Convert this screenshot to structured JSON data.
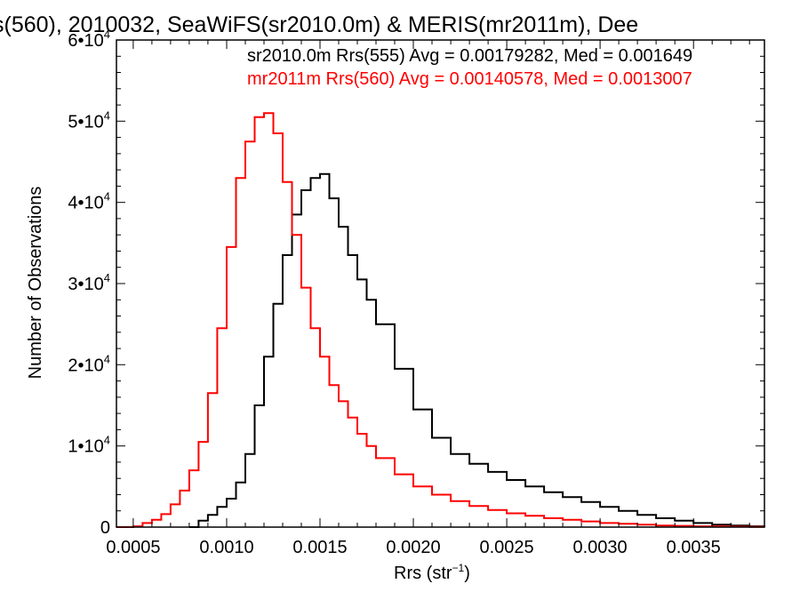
{
  "chart_data": {
    "type": "line",
    "title": "s(560), 2010032, SeaWiFS(sr2010.0m) & MERIS(mr2011m), Dee",
    "xlabel": "Rrs (str",
    "xlabel_sup": "−1",
    "xlabel_end": ")",
    "ylabel": "Number of Observations",
    "xlim": [
      0.00041,
      0.00388
    ],
    "ylim": [
      0,
      60000
    ],
    "x_ticks": [
      {
        "value": 0.0005,
        "label": "0.0005"
      },
      {
        "value": 0.001,
        "label": "0.0010"
      },
      {
        "value": 0.0015,
        "label": "0.0015"
      },
      {
        "value": 0.002,
        "label": "0.0020"
      },
      {
        "value": 0.0025,
        "label": "0.0025"
      },
      {
        "value": 0.003,
        "label": "0.0030"
      },
      {
        "value": 0.0035,
        "label": "0.0035"
      }
    ],
    "y_ticks": [
      {
        "value": 0,
        "base": "0",
        "exp": ""
      },
      {
        "value": 10000,
        "base": "1•10",
        "exp": "4"
      },
      {
        "value": 20000,
        "base": "2•10",
        "exp": "4"
      },
      {
        "value": 30000,
        "base": "3•10",
        "exp": "4"
      },
      {
        "value": 40000,
        "base": "4•10",
        "exp": "4"
      },
      {
        "value": 50000,
        "base": "5•10",
        "exp": "4"
      },
      {
        "value": 60000,
        "base": "6•10",
        "exp": "4"
      }
    ],
    "grid": false,
    "annotations": [
      {
        "text": "sr2010.0m Rrs(555) Avg = 0.00179282, Med = 0.001649",
        "color": "#000000"
      },
      {
        "text": "mr2011m Rrs(560) Avg = 0.00140578, Med = 0.0013007",
        "color": "#ff0000"
      }
    ],
    "series": [
      {
        "color": "#000000",
        "style": "step",
        "x": [
          0.0008,
          0.00085,
          0.0009,
          0.00095,
          0.001,
          0.00105,
          0.0011,
          0.00115,
          0.0012,
          0.00125,
          0.0013,
          0.00135,
          0.0014,
          0.00145,
          0.0015,
          0.00155,
          0.0016,
          0.00165,
          0.0017,
          0.00175,
          0.0018,
          0.0019,
          0.002,
          0.0021,
          0.0022,
          0.0023,
          0.0024,
          0.0025,
          0.0026,
          0.0027,
          0.0028,
          0.0029,
          0.003,
          0.0031,
          0.0032,
          0.0033,
          0.0034,
          0.0035,
          0.0036,
          0.0037,
          0.0038,
          0.00388
        ],
        "values": [
          0,
          800,
          1500,
          2500,
          3500,
          5500,
          9000,
          15000,
          21000,
          27500,
          33500,
          38500,
          41500,
          43000,
          43500,
          40500,
          37000,
          33500,
          30500,
          28000,
          25000,
          19500,
          14500,
          11000,
          9000,
          7800,
          6800,
          5800,
          5000,
          4300,
          3700,
          3100,
          2500,
          2000,
          1500,
          1100,
          800,
          500,
          300,
          200,
          100,
          50
        ]
      },
      {
        "color": "#ff0000",
        "style": "step",
        "x": [
          0.00041,
          0.0005,
          0.00055,
          0.0006,
          0.00065,
          0.0007,
          0.00075,
          0.0008,
          0.00085,
          0.0009,
          0.00095,
          0.001,
          0.00105,
          0.0011,
          0.00115,
          0.0012,
          0.00125,
          0.0013,
          0.00135,
          0.0014,
          0.00145,
          0.0015,
          0.00155,
          0.0016,
          0.00165,
          0.0017,
          0.00175,
          0.0018,
          0.0019,
          0.002,
          0.0021,
          0.0022,
          0.0023,
          0.0024,
          0.0025,
          0.0026,
          0.0027,
          0.0028,
          0.0029,
          0.003,
          0.0031,
          0.0032,
          0.0033,
          0.0034,
          0.0035,
          0.0036,
          0.0037,
          0.0038,
          0.00388
        ],
        "values": [
          0,
          100,
          500,
          900,
          1600,
          2800,
          4500,
          7000,
          10500,
          16500,
          24500,
          34500,
          43000,
          47500,
          50500,
          51000,
          48500,
          42500,
          36000,
          29500,
          24500,
          21000,
          17500,
          15500,
          13500,
          11500,
          10000,
          8500,
          6500,
          5000,
          4000,
          3200,
          2600,
          2100,
          1700,
          1400,
          1100,
          900,
          700,
          500,
          400,
          300,
          200,
          150,
          100,
          80,
          50,
          30,
          20
        ]
      }
    ]
  }
}
